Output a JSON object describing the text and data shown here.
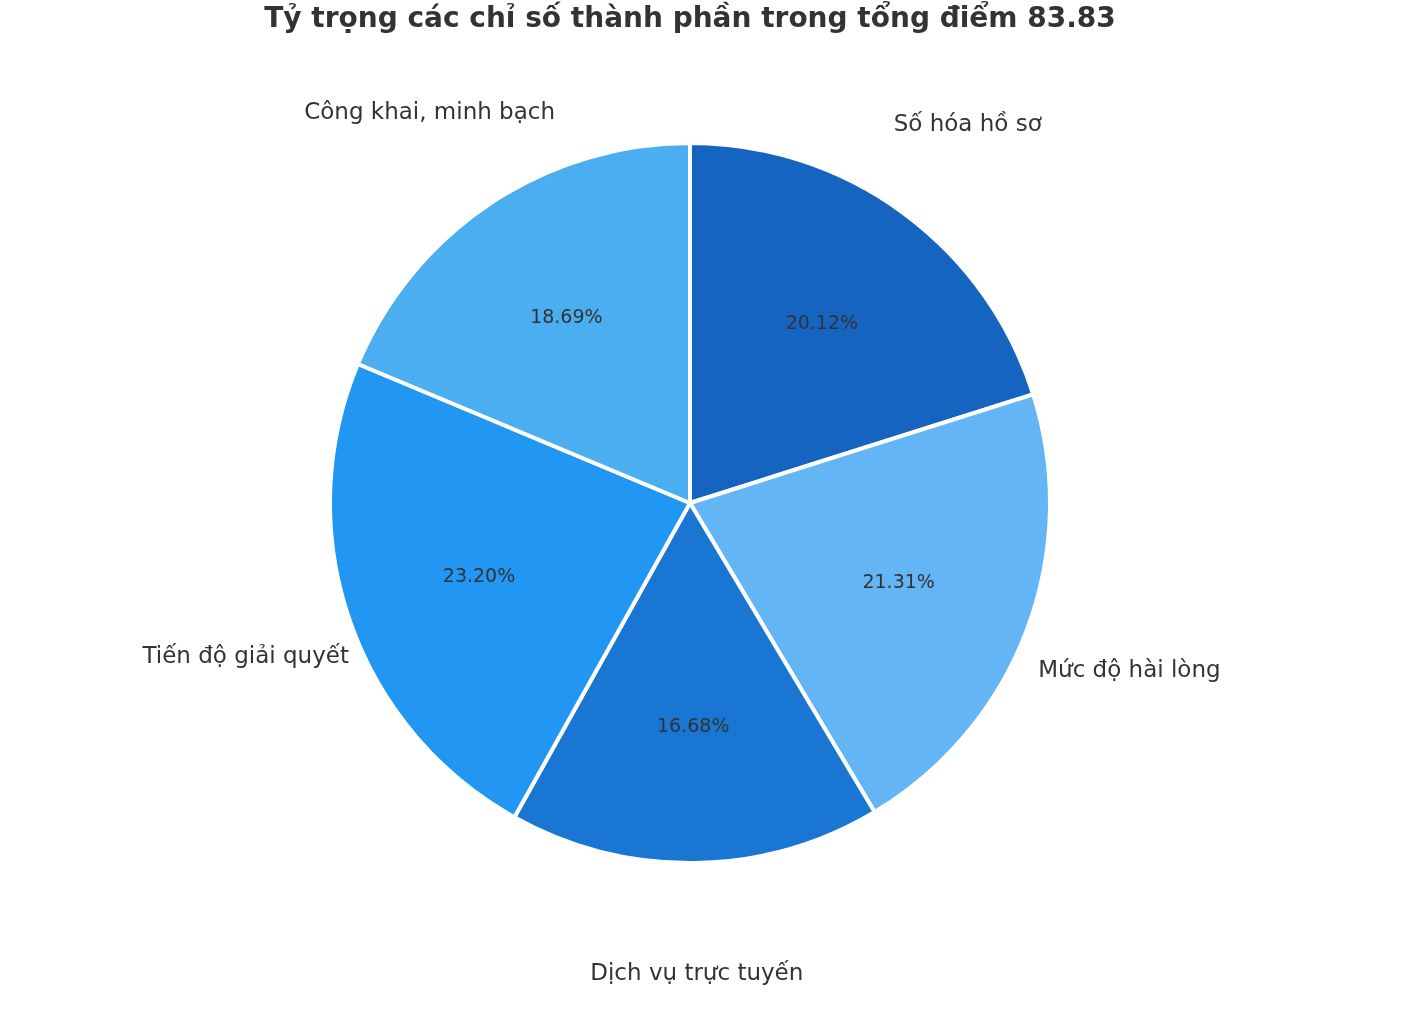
{
  "chart_data": {
    "type": "pie",
    "title": "Tỷ trọng các chỉ số thành phần trong tổng điểm 83.83",
    "categories": [
      "Số hóa hồ sơ",
      "Mức độ hài lòng",
      "Dịch vụ trực tuyến",
      "Tiến độ giải quyết",
      "Công khai, minh bạch"
    ],
    "values": [
      20.12,
      21.31,
      16.68,
      23.2,
      18.69
    ],
    "value_labels": [
      "20.12%",
      "21.31%",
      "16.68%",
      "23.20%",
      "18.69%"
    ],
    "colors": [
      "#1565c0",
      "#64b5f6",
      "#1976d2",
      "#2196f3",
      "#4baef0"
    ]
  }
}
